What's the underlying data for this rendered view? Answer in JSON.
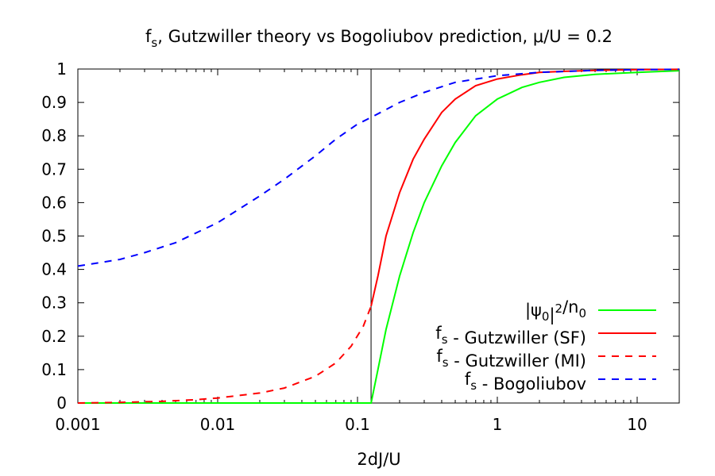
{
  "chart_data": {
    "type": "line",
    "title": {
      "base": "f",
      "sub": "s",
      "rest": ", Gutzwiller theory vs Bogoliubov prediction, μ/U = 0.2"
    },
    "xlabel": "2dJ/U",
    "ylabel": "",
    "xscale": "log",
    "xlim": [
      0.001,
      20
    ],
    "ylim": [
      0,
      1
    ],
    "xticks": [
      0.001,
      0.01,
      0.1,
      1,
      10
    ],
    "xtick_labels": [
      "0.001",
      "0.01",
      "0.1",
      "1",
      "10"
    ],
    "yticks": [
      0,
      0.1,
      0.2,
      0.3,
      0.4,
      0.5,
      0.6,
      0.7,
      0.8,
      0.9,
      1
    ],
    "ytick_labels": [
      "0",
      "0.1",
      "0.2",
      "0.3",
      "0.4",
      "0.5",
      "0.6",
      "0.7",
      "0.8",
      "0.9",
      "1"
    ],
    "grid": false,
    "legend_position": "bottom-right",
    "vertical_line_x": 0.125,
    "series": [
      {
        "key": "psi",
        "color": "#00ff00",
        "dash": false,
        "points": [
          [
            0.001,
            0
          ],
          [
            0.01,
            0
          ],
          [
            0.05,
            0
          ],
          [
            0.125,
            0
          ],
          [
            0.14,
            0.1
          ],
          [
            0.16,
            0.22
          ],
          [
            0.2,
            0.38
          ],
          [
            0.25,
            0.51
          ],
          [
            0.3,
            0.6
          ],
          [
            0.4,
            0.71
          ],
          [
            0.5,
            0.78
          ],
          [
            0.7,
            0.86
          ],
          [
            1,
            0.91
          ],
          [
            1.5,
            0.945
          ],
          [
            2,
            0.96
          ],
          [
            3,
            0.975
          ],
          [
            5,
            0.984
          ],
          [
            10,
            0.99
          ],
          [
            20,
            0.995
          ]
        ]
      },
      {
        "key": "sf",
        "color": "#ff0000",
        "dash": false,
        "points": [
          [
            0.125,
            0.29
          ],
          [
            0.14,
            0.38
          ],
          [
            0.16,
            0.5
          ],
          [
            0.2,
            0.63
          ],
          [
            0.25,
            0.73
          ],
          [
            0.3,
            0.79
          ],
          [
            0.4,
            0.87
          ],
          [
            0.5,
            0.91
          ],
          [
            0.7,
            0.95
          ],
          [
            1,
            0.97
          ],
          [
            1.5,
            0.983
          ],
          [
            2,
            0.99
          ],
          [
            3,
            0.993
          ],
          [
            5,
            0.996
          ],
          [
            10,
            0.998
          ],
          [
            20,
            0.999
          ]
        ]
      },
      {
        "key": "mi",
        "color": "#ff0000",
        "dash": true,
        "points": [
          [
            0.001,
            0
          ],
          [
            0.002,
            0.002
          ],
          [
            0.004,
            0.005
          ],
          [
            0.007,
            0.01
          ],
          [
            0.01,
            0.015
          ],
          [
            0.02,
            0.03
          ],
          [
            0.03,
            0.045
          ],
          [
            0.05,
            0.08
          ],
          [
            0.07,
            0.12
          ],
          [
            0.09,
            0.17
          ],
          [
            0.11,
            0.23
          ],
          [
            0.125,
            0.29
          ]
        ]
      },
      {
        "key": "bog",
        "color": "#0000ff",
        "dash": true,
        "points": [
          [
            0.001,
            0.41
          ],
          [
            0.002,
            0.43
          ],
          [
            0.003,
            0.45
          ],
          [
            0.005,
            0.48
          ],
          [
            0.01,
            0.54
          ],
          [
            0.02,
            0.62
          ],
          [
            0.03,
            0.67
          ],
          [
            0.05,
            0.74
          ],
          [
            0.07,
            0.79
          ],
          [
            0.1,
            0.835
          ],
          [
            0.125,
            0.855
          ],
          [
            0.2,
            0.9
          ],
          [
            0.3,
            0.93
          ],
          [
            0.5,
            0.96
          ],
          [
            1,
            0.98
          ],
          [
            2,
            0.99
          ],
          [
            5,
            0.996
          ],
          [
            10,
            0.998
          ],
          [
            20,
            0.999
          ]
        ]
      }
    ],
    "legend": [
      {
        "key": "psi",
        "parts": [
          [
            "t",
            "|ψ"
          ],
          [
            "sub",
            "0"
          ],
          [
            "t",
            "|"
          ],
          [
            "sup",
            "2"
          ],
          [
            "t",
            "/n"
          ],
          [
            "sub",
            "0"
          ]
        ]
      },
      {
        "key": "sf",
        "parts": [
          [
            "t",
            "f"
          ],
          [
            "sub",
            "s"
          ],
          [
            "t",
            " - Gutzwiller (SF)"
          ]
        ]
      },
      {
        "key": "mi",
        "parts": [
          [
            "t",
            "f"
          ],
          [
            "sub",
            "s"
          ],
          [
            "t",
            " - Gutzwiller (MI)"
          ]
        ]
      },
      {
        "key": "bog",
        "parts": [
          [
            "t",
            "f"
          ],
          [
            "sub",
            "s"
          ],
          [
            "t",
            " - Bogoliubov"
          ]
        ]
      }
    ]
  }
}
